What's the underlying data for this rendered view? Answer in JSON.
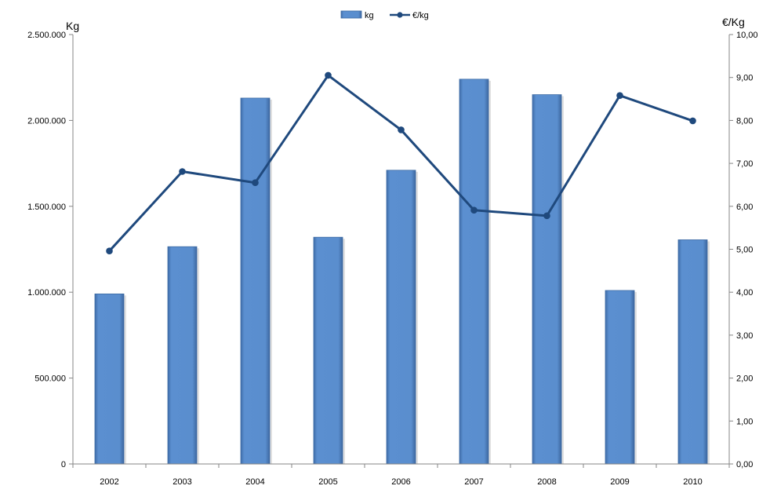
{
  "chart_data": {
    "type": "bar",
    "categories": [
      "2002",
      "2003",
      "2004",
      "2005",
      "2006",
      "2007",
      "2008",
      "2009",
      "2010"
    ],
    "series": [
      {
        "name": "kg",
        "type": "bar",
        "axis": "left",
        "values": [
          990000,
          1265000,
          2130000,
          1320000,
          1710000,
          2240000,
          2150000,
          1010000,
          1305000
        ]
      },
      {
        "name": "€/kg",
        "type": "line",
        "axis": "right",
        "values": [
          4.96,
          6.81,
          6.55,
          9.05,
          7.78,
          5.91,
          5.78,
          8.58,
          7.99
        ]
      }
    ],
    "ylabel_left": "Kg",
    "ylabel_right": "€/Kg",
    "ylim_left": [
      0,
      2500000
    ],
    "ylim_right": [
      0,
      10
    ],
    "yticks_left": [
      "0",
      "500.000",
      "1.000.000",
      "1.500.000",
      "2.000.000",
      "2.500.000"
    ],
    "yticks_right": [
      "0,00",
      "1,00",
      "2,00",
      "3,00",
      "4,00",
      "5,00",
      "6,00",
      "7,00",
      "8,00",
      "9,00",
      "10,00"
    ],
    "grid": false,
    "legend_position": "top-center",
    "colors": {
      "bar_fill": "#5b8fd0",
      "bar_edge": "#3c6aa3",
      "line": "#1f497d"
    }
  }
}
